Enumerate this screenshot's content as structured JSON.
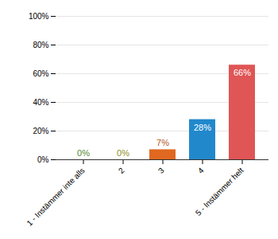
{
  "chart_data": {
    "type": "bar",
    "categories": [
      "1 - Instämmer inte alls",
      "2",
      "3",
      "4",
      "5 - Instämmer helt"
    ],
    "values": [
      0,
      0,
      7,
      28,
      66
    ],
    "value_labels": [
      "0%",
      "0%",
      "7%",
      "28%",
      "66%"
    ],
    "data_labels": true,
    "colors": [
      "#6aaa3a",
      "#b0b030",
      "#e06820",
      "#2288cc",
      "#e05555"
    ],
    "ylim": [
      0,
      100
    ],
    "yticks": [
      {
        "value": 0,
        "label": "0%"
      },
      {
        "value": 20,
        "label": "20%"
      },
      {
        "value": 40,
        "label": "40%"
      },
      {
        "value": 60,
        "label": "60%"
      },
      {
        "value": 80,
        "label": "80%"
      },
      {
        "value": 100,
        "label": "100%"
      }
    ],
    "grid": true
  }
}
